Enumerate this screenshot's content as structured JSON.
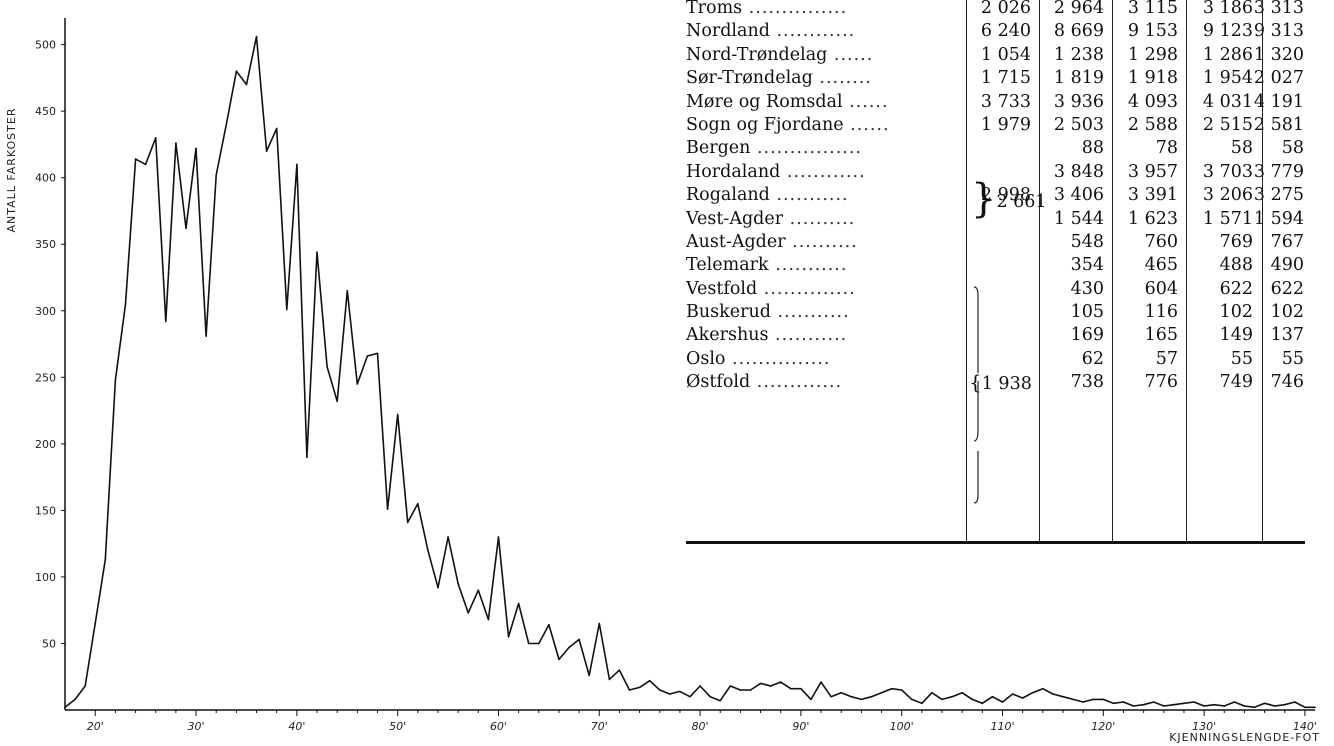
{
  "chart_data": {
    "type": "line",
    "ylabel": "ANTALL FARKOSTER",
    "xlabel": "KJENNINGSLENGDE-FOT",
    "xlim": [
      17,
      141
    ],
    "ylim": [
      0,
      520
    ],
    "yticks": [
      50,
      100,
      150,
      200,
      250,
      300,
      350,
      400,
      450,
      500
    ],
    "yticklabels": [
      "50",
      "100",
      "150",
      "200",
      "250",
      "300",
      "350",
      "400",
      "450",
      "500"
    ],
    "xticks": [
      20,
      30,
      40,
      50,
      60,
      70,
      80,
      90,
      100,
      110,
      120,
      130,
      140
    ],
    "xticklabels": [
      "20'",
      "30'",
      "40'",
      "50'",
      "60'",
      "70'",
      "80'",
      "90'",
      "100'",
      "110'",
      "120'",
      "130'",
      "140'"
    ],
    "series": [
      {
        "x": [
          17,
          18,
          19,
          20,
          21,
          22,
          23,
          24,
          25,
          26,
          27,
          28,
          29,
          30,
          31,
          32,
          33,
          34,
          35,
          36,
          37,
          38,
          39,
          40,
          41,
          42,
          43,
          44,
          45,
          46,
          47,
          48,
          49,
          50,
          51,
          52,
          53,
          54,
          55,
          56,
          57,
          58,
          59,
          60,
          61,
          62,
          63,
          64,
          65,
          66,
          67,
          68,
          69,
          70,
          71,
          72,
          73,
          74,
          75,
          76,
          77,
          78,
          79,
          80,
          81,
          82,
          83,
          84,
          85,
          86,
          87,
          88,
          89,
          90,
          91,
          92,
          93,
          94,
          95,
          96,
          97,
          98,
          99,
          100,
          101,
          102,
          103,
          104,
          105,
          106,
          107,
          108,
          109,
          110,
          111,
          112,
          113,
          114,
          115,
          116,
          117,
          118,
          119,
          120,
          121,
          122,
          123,
          124,
          125,
          126,
          127,
          128,
          129,
          130,
          131,
          132,
          133,
          134,
          135,
          136,
          137,
          138,
          139,
          140,
          141
        ],
        "y": [
          2,
          8,
          18,
          65,
          113,
          248,
          305,
          414,
          410,
          430,
          292,
          426,
          362,
          422,
          281,
          402,
          440,
          480,
          470,
          506,
          420,
          437,
          301,
          410,
          190,
          344,
          258,
          232,
          315,
          245,
          266,
          268,
          151,
          222,
          141,
          155,
          120,
          92,
          130,
          95,
          73,
          90,
          68,
          130,
          55,
          80,
          50,
          50,
          64,
          38,
          47,
          53,
          26,
          65,
          23,
          30,
          15,
          17,
          22,
          15,
          12,
          14,
          10,
          18,
          10,
          7,
          18,
          15,
          15,
          20,
          18,
          21,
          16,
          16,
          8,
          21,
          10,
          13,
          10,
          8,
          10,
          13,
          16,
          15,
          8,
          5,
          13,
          8,
          10,
          13,
          8,
          5,
          10,
          6,
          12,
          9,
          13,
          16,
          12,
          10,
          8,
          6,
          8,
          8,
          5,
          6,
          3,
          4,
          6,
          3,
          4,
          5,
          6,
          3,
          4,
          3,
          6,
          3,
          2,
          5,
          3,
          4,
          6,
          2,
          2
        ]
      }
    ]
  },
  "table": {
    "rows": [
      {
        "label": "Troms",
        "dots": "...............",
        "c1": "2 026",
        "c2": "2 964",
        "c3": "3 115",
        "c4": "3 186",
        "c5": "3 313"
      },
      {
        "label": "Nordland",
        "dots": "............",
        "c1": "6 240",
        "c2": "8 669",
        "c3": "9 153",
        "c4": "9 123",
        "c5": "9 313"
      },
      {
        "label": "Nord-Trøndelag",
        "dots": "......",
        "c1": "1 054",
        "c2": "1 238",
        "c3": "1 298",
        "c4": "1 286",
        "c5": "1 320"
      },
      {
        "label": "Sør-Trøndelag",
        "dots": "........",
        "c1": "1 715",
        "c2": "1 819",
        "c3": "1 918",
        "c4": "1 954",
        "c5": "2 027"
      },
      {
        "label": "Møre og Romsdal",
        "dots": "......",
        "c1": "3 733",
        "c2": "3 936",
        "c3": "4 093",
        "c4": "4 031",
        "c5": "4 191"
      },
      {
        "label": "Sogn og Fjordane",
        "dots": "......",
        "c1": "1 979",
        "c2": "2 503",
        "c3": "2 588",
        "c4": "2 515",
        "c5": "2 581"
      },
      {
        "label": "Bergen",
        "dots": "................",
        "c1": "",
        "c2": "88",
        "c3": "78",
        "c4": "58",
        "c5": "58"
      },
      {
        "label": "Hordaland",
        "dots": "............",
        "c1": "",
        "c2": "3 848",
        "c3": "3 957",
        "c4": "3 703",
        "c5": "3 779"
      },
      {
        "label": "Rogaland",
        "dots": "...........",
        "c1": "2 998",
        "c2": "3 406",
        "c3": "3 391",
        "c4": "3 206",
        "c5": "3 275"
      },
      {
        "label": "Vest-Agder",
        "dots": "..........",
        "c1": "",
        "c2": "1 544",
        "c3": "1 623",
        "c4": "1 571",
        "c5": "1 594"
      },
      {
        "label": "Aust-Agder",
        "dots": "..........",
        "c1": "",
        "c2": "548",
        "c3": "760",
        "c4": "769",
        "c5": "767"
      },
      {
        "label": "Telemark",
        "dots": "...........",
        "c1": "",
        "c2": "354",
        "c3": "465",
        "c4": "488",
        "c5": "490"
      },
      {
        "label": "Vestfold",
        "dots": "..............",
        "c1": "",
        "c2": "430",
        "c3": "604",
        "c4": "622",
        "c5": "622"
      },
      {
        "label": "Buskerud",
        "dots": "...........",
        "c1": "",
        "c2": "105",
        "c3": "116",
        "c4": "102",
        "c5": "102"
      },
      {
        "label": "Akershus",
        "dots": "...........",
        "c1": "",
        "c2": "169",
        "c3": "165",
        "c4": "149",
        "c5": "137"
      },
      {
        "label": "Oslo",
        "dots": "...............",
        "c1": "",
        "c2": "62",
        "c3": "57",
        "c4": "55",
        "c5": "55"
      },
      {
        "label": "Østfold",
        "dots": ".............",
        "c1": "",
        "c2": "738",
        "c3": "776",
        "c4": "749",
        "c5": "746"
      }
    ],
    "brace_bergen_hordaland": "2 661",
    "brace_south": "1 938"
  }
}
